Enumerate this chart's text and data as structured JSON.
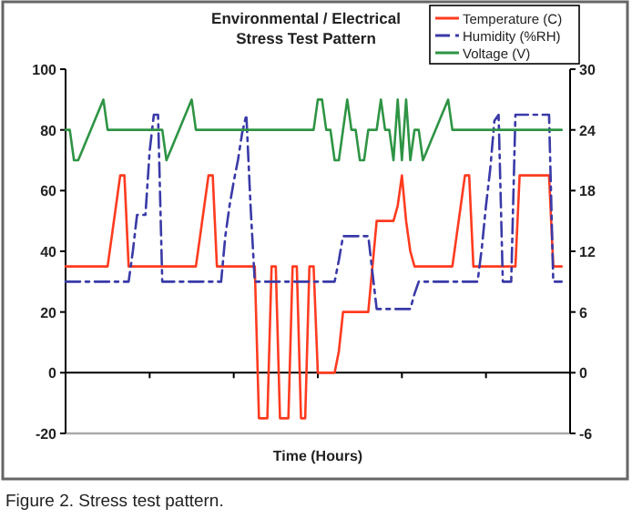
{
  "chart_data": {
    "type": "line",
    "title": "Environmental / Electrical\nStress Test Pattern",
    "xlabel": "Time (Hours)",
    "annotations": [
      "Figure 2. Stress test pattern."
    ],
    "categories": [
      null,
      null,
      null,
      null,
      null,
      null,
      null,
      null,
      null,
      null,
      null,
      null,
      null,
      null,
      null,
      null,
      null,
      null,
      null,
      null,
      null,
      null,
      null,
      null,
      null,
      null,
      null,
      null,
      null,
      null,
      null,
      null,
      null,
      null,
      null,
      null,
      null,
      null,
      null,
      null,
      null,
      null,
      null,
      null,
      null,
      null,
      null,
      null,
      null,
      null,
      null,
      null,
      null,
      null,
      null,
      null,
      null,
      null,
      null,
      null,
      null,
      null,
      null,
      null,
      null,
      null,
      null,
      null,
      null,
      null,
      null,
      null,
      null,
      null,
      null,
      null,
      null,
      null,
      null,
      null,
      null,
      null,
      null,
      null,
      null,
      null,
      null,
      null,
      null,
      null,
      null,
      null,
      null,
      null,
      null,
      null,
      null,
      null,
      null,
      null,
      null,
      null,
      null,
      null,
      null,
      null,
      null,
      null,
      null,
      null,
      null,
      null,
      null,
      null,
      null,
      null,
      null,
      null,
      null,
      null,
      null
    ],
    "series": [
      {
        "name": "Temperature (C)",
        "color": "#ff3b1f",
        "line_style": "solid",
        "values": [
          35,
          35,
          35,
          35,
          35,
          35,
          35,
          35,
          35,
          35,
          35,
          45,
          55,
          65,
          65,
          35,
          35,
          35,
          35,
          35,
          35,
          35,
          35,
          35,
          35,
          35,
          35,
          35,
          35,
          35,
          35,
          35,
          45,
          55,
          65,
          65,
          35,
          35,
          35,
          35,
          35,
          35,
          35,
          35,
          35,
          35,
          -15,
          -15,
          -15,
          35,
          35,
          -15,
          -15,
          -15,
          35,
          35,
          -15,
          -15,
          35,
          35,
          0,
          0,
          0,
          0,
          0,
          7,
          20,
          20,
          20,
          20,
          20,
          20,
          20,
          35,
          50,
          50,
          50,
          50,
          50,
          55,
          65,
          50,
          40,
          35,
          35,
          35,
          35,
          35,
          35,
          35,
          35,
          35,
          35,
          45,
          55,
          65,
          65,
          35,
          35,
          35,
          35,
          35,
          35,
          35,
          35,
          35,
          35,
          35,
          65,
          65,
          65,
          65,
          65,
          65,
          65,
          65,
          35,
          35,
          35,
          null,
          null
        ]
      },
      {
        "name": "Humidity (%RH)",
        "color": "#3a3aa8",
        "line_style": "dashed",
        "values": [
          30,
          30,
          30,
          30,
          30,
          30,
          30,
          30,
          30,
          30,
          30,
          30,
          30,
          30,
          30,
          30,
          40,
          52,
          52,
          52,
          73,
          85,
          85,
          30,
          30,
          30,
          30,
          30,
          30,
          30,
          30,
          30,
          30,
          30,
          30,
          30,
          30,
          30,
          45,
          55,
          63,
          70,
          79,
          85,
          55,
          30,
          30,
          30,
          30,
          30,
          30,
          30,
          30,
          30,
          30,
          30,
          30,
          30,
          30,
          30,
          30,
          30,
          30,
          30,
          30,
          37,
          45,
          45,
          45,
          45,
          45,
          45,
          45,
          33,
          21,
          21,
          21,
          21,
          21,
          21,
          21,
          21,
          21,
          26,
          30,
          30,
          30,
          30,
          30,
          30,
          30,
          30,
          30,
          30,
          30,
          30,
          30,
          30,
          30,
          41,
          55,
          67,
          83,
          85,
          30,
          30,
          30,
          85,
          85,
          85,
          85,
          85,
          85,
          85,
          85,
          85,
          30,
          30,
          30,
          null,
          null
        ]
      },
      {
        "name": "Voltage (V)",
        "color": "#2e9444",
        "line_style": "solid",
        "axis": "y2",
        "values": [
          24,
          24,
          21,
          21,
          22,
          23,
          24,
          25,
          26,
          27,
          24,
          24,
          24,
          24,
          24,
          24,
          24,
          24,
          24,
          24,
          24,
          24,
          24,
          24,
          21,
          22,
          23,
          24,
          25,
          26,
          27,
          24,
          24,
          24,
          24,
          24,
          24,
          24,
          24,
          24,
          24,
          24,
          24,
          24,
          24,
          24,
          24,
          24,
          24,
          24,
          24,
          24,
          24,
          24,
          24,
          24,
          24,
          24,
          24,
          24,
          27,
          27,
          24,
          24,
          21,
          21,
          24,
          27,
          24,
          24,
          21,
          21,
          24,
          24,
          24,
          27,
          24,
          24,
          21,
          27,
          21,
          27,
          21,
          24,
          24,
          21,
          22,
          23,
          24,
          25,
          26,
          27,
          24,
          24,
          24,
          24,
          24,
          24,
          24,
          24,
          24,
          24,
          24,
          24,
          24,
          24,
          24,
          24,
          24,
          24,
          24,
          24,
          24,
          24,
          24,
          24,
          24,
          24,
          24,
          null,
          null
        ]
      }
    ],
    "ylim": [
      -20,
      100
    ],
    "yticks": [
      -20,
      0,
      20,
      40,
      60,
      80,
      100
    ],
    "y2lim": [
      -6,
      30
    ],
    "y2ticks": [
      -6,
      0,
      6,
      12,
      18,
      24,
      30
    ],
    "legend": "top right"
  }
}
